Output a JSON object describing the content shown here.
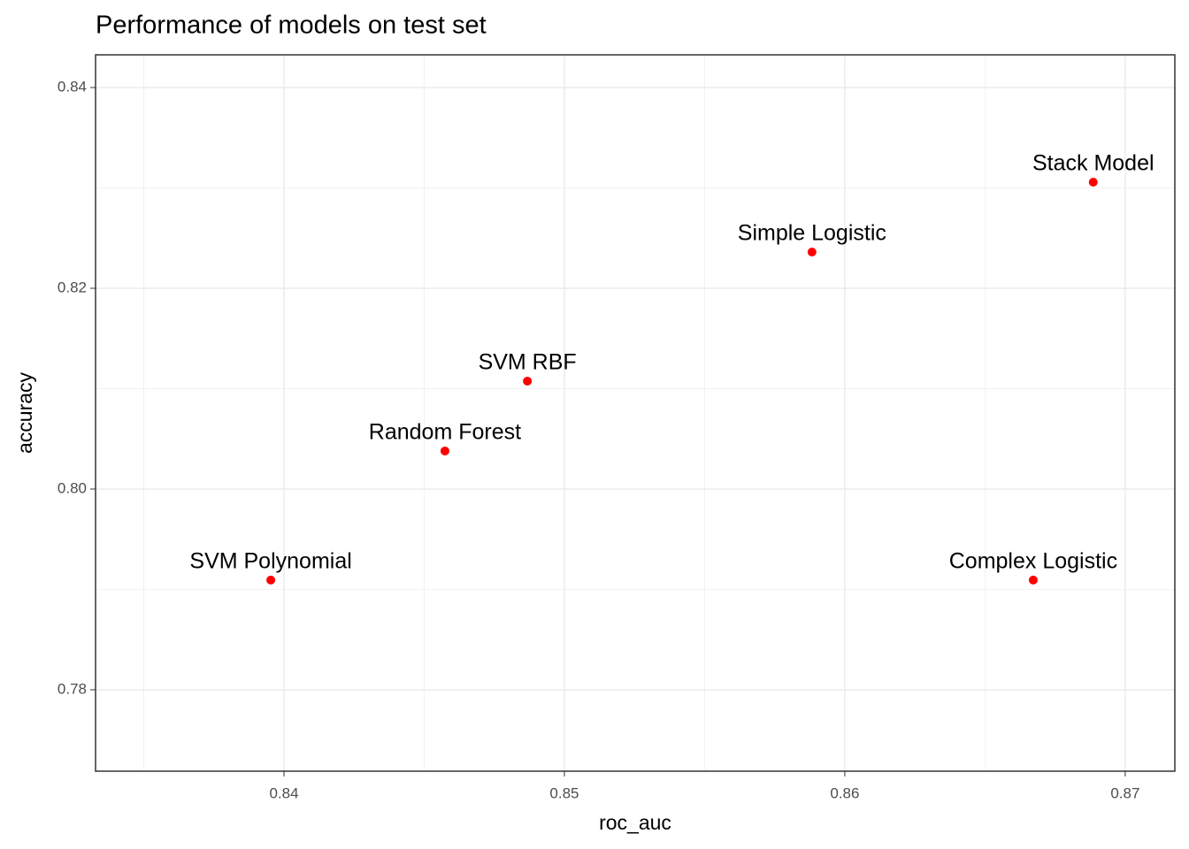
{
  "chart_data": {
    "type": "scatter",
    "title": "Performance of models on test set",
    "x_label": "roc_auc",
    "y_label": "accuracy",
    "labels": [
      "SVM Polynomial",
      "Random Forest",
      "SVM RBF",
      "Simple Logistic",
      "Stack Model",
      "Complex Logistic"
    ],
    "x": [
      0.83953,
      0.84574,
      0.84868,
      0.85883,
      0.86886,
      0.86672
    ],
    "values": [
      0.79093,
      0.80379,
      0.81075,
      0.82361,
      0.83057,
      0.79093
    ],
    "color": "#ff0000",
    "xlim": [
      0.83328,
      0.87177
    ],
    "xticks": [
      0.84,
      0.85,
      0.86,
      0.87
    ],
    "ylim": [
      0.77189,
      0.84326
    ],
    "yticks": [
      {
        "value": 0.78,
        "label": "0.78"
      },
      {
        "value": 0.8,
        "label": "0.80"
      },
      {
        "value": 0.82,
        "label": "0.82"
      },
      {
        "value": 0.84,
        "label": "0.84"
      }
    ],
    "grid": true
  }
}
